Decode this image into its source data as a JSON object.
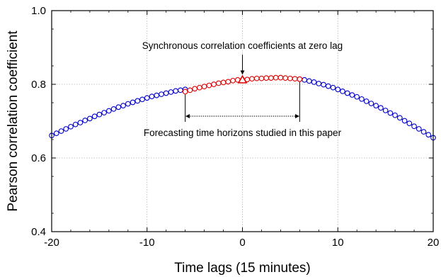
{
  "chart_data": {
    "type": "line",
    "title": "",
    "xlabel": "Time lags (15 minutes)",
    "ylabel": "Pearson correlation coefficient",
    "xlim": [
      -20,
      20
    ],
    "ylim": [
      0.4,
      1.0
    ],
    "xticks": [
      -20,
      -10,
      0,
      10,
      20
    ],
    "xtick_labels": [
      "-20",
      "-10",
      "0",
      "10",
      "20"
    ],
    "yticks": [
      0.4,
      0.6,
      0.8,
      1.0
    ],
    "ytick_labels": [
      "0.4",
      "0.6",
      "0.8",
      "1.0"
    ],
    "grid": true,
    "legend": "none",
    "series": [
      {
        "color": "#0000cc",
        "marker": "circle",
        "x": [
          -20,
          -19.5,
          -19,
          -18.5,
          -18,
          -17.5,
          -17,
          -16.5,
          -16,
          -15.5,
          -15,
          -14.5,
          -14,
          -13.5,
          -13,
          -12.5,
          -12,
          -11.5,
          -11,
          -10.5,
          -10,
          -9.5,
          -9,
          -8.5,
          -8,
          -7.5,
          -7,
          -6.5,
          -6,
          6,
          6.5,
          7,
          7.5,
          8,
          8.5,
          9,
          9.5,
          10,
          10.5,
          11,
          11.5,
          12,
          12.5,
          13,
          13.5,
          14,
          14.5,
          15,
          15.5,
          16,
          16.5,
          17,
          17.5,
          18,
          18.5,
          19,
          19.5,
          20
        ],
        "y": [
          0.661,
          0.667,
          0.673,
          0.679,
          0.685,
          0.691,
          0.696,
          0.702,
          0.707,
          0.713,
          0.718,
          0.723,
          0.728,
          0.733,
          0.738,
          0.742,
          0.747,
          0.751,
          0.755,
          0.759,
          0.763,
          0.767,
          0.77,
          0.773,
          0.776,
          0.779,
          0.782,
          0.784,
          0.786,
          0.814,
          0.812,
          0.809,
          0.806,
          0.802,
          0.799,
          0.795,
          0.791,
          0.786,
          0.781,
          0.776,
          0.771,
          0.766,
          0.76,
          0.754,
          0.748,
          0.742,
          0.736,
          0.729,
          0.722,
          0.716,
          0.709,
          0.701,
          0.694,
          0.686,
          0.679,
          0.671,
          0.663,
          0.655
        ]
      },
      {
        "color": "#dd0000",
        "marker": "circle",
        "x": [
          -6,
          -5.5,
          -5,
          -4.5,
          -4,
          -3.5,
          -3,
          -2.5,
          -2,
          -1.5,
          -1,
          -0.5,
          0.5,
          1,
          1.5,
          2,
          2.5,
          3,
          3.5,
          4,
          4.5,
          5,
          5.5,
          6
        ],
        "y": [
          0.78,
          0.784,
          0.788,
          0.791,
          0.794,
          0.797,
          0.8,
          0.803,
          0.805,
          0.807,
          0.81,
          0.812,
          0.813,
          0.815,
          0.816,
          0.816,
          0.817,
          0.817,
          0.818,
          0.818,
          0.817,
          0.816,
          0.815,
          0.814
        ]
      },
      {
        "color": "#dd0000",
        "marker": "triangle",
        "x": [
          0
        ],
        "y": [
          0.812
        ]
      }
    ],
    "annotations": [
      {
        "text": "Synchronous correlation coefficients at zero lag",
        "arrow_to_x": 0,
        "arrow_to_y": 0.812
      },
      {
        "text": "Forecasting time horizons studied in this paper",
        "range_x": [
          -6,
          6
        ]
      }
    ]
  }
}
